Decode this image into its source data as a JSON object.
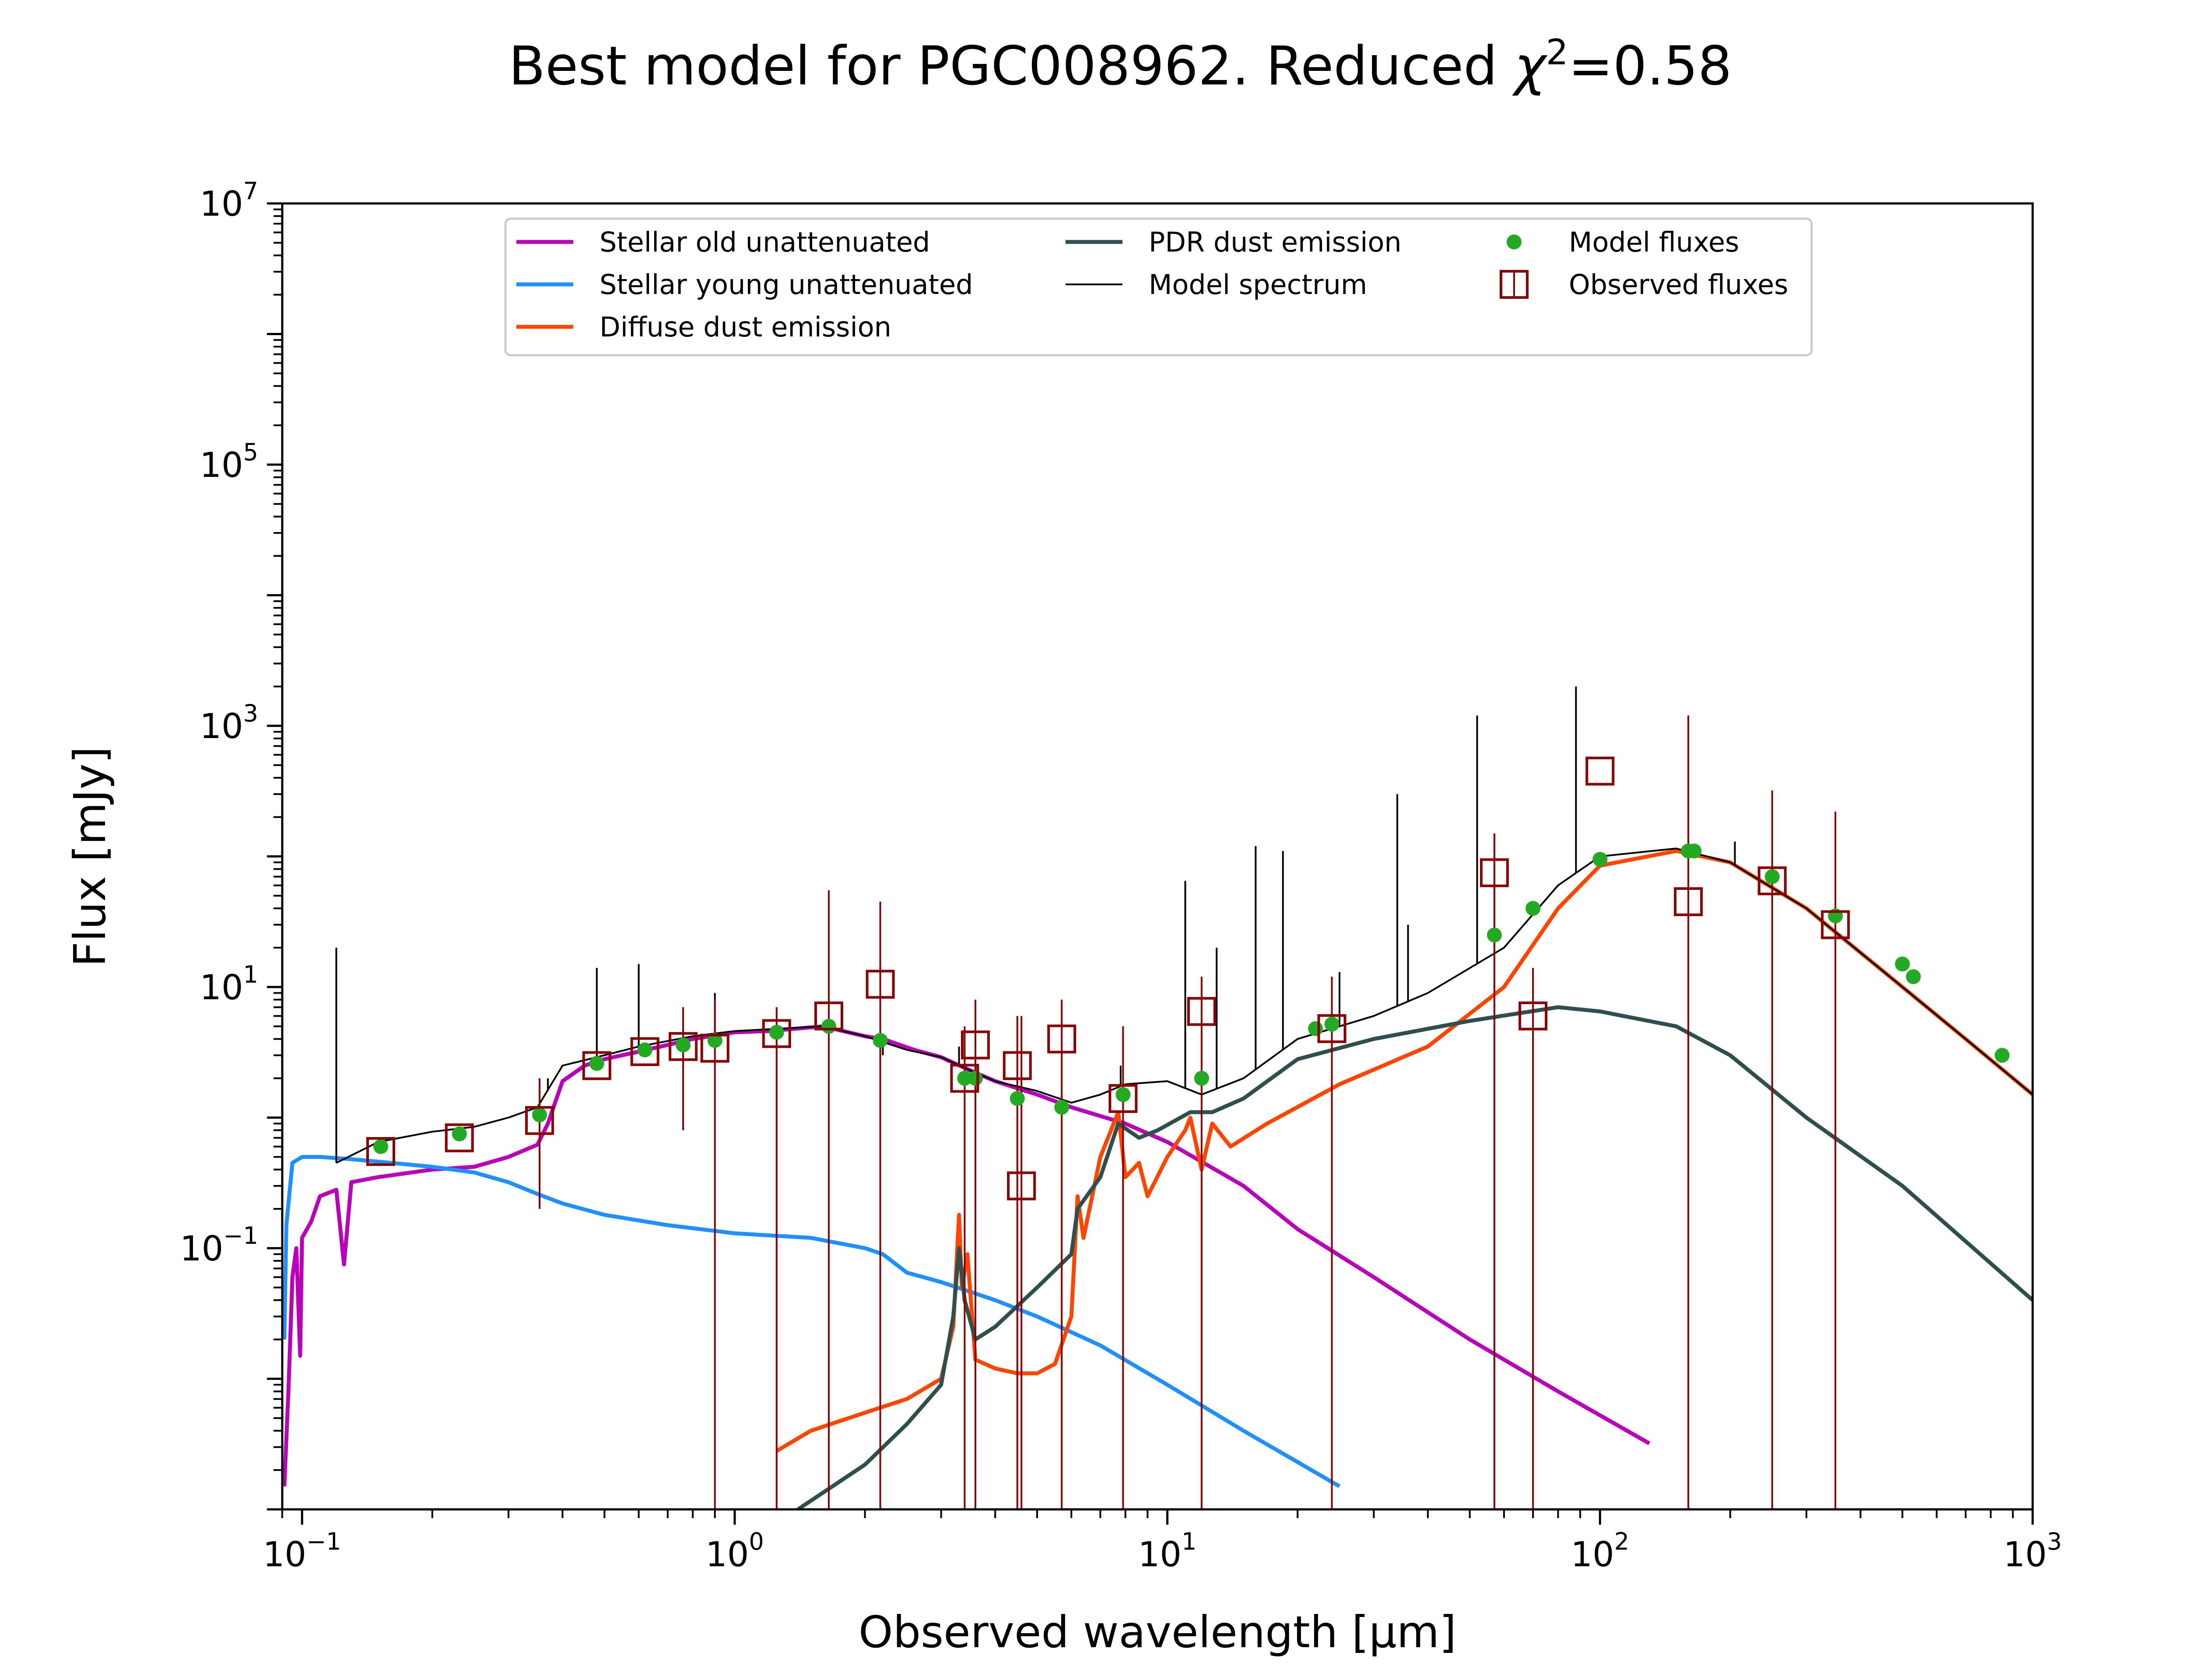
{
  "chart_data": {
    "type": "line",
    "title": "Best model for PGC008962. Reduced χ²=0.58",
    "title_parts": {
      "prefix": "Best model for PGC008962. Reduced ",
      "chi": "χ",
      "sup": "2",
      "suffix": "=0.58"
    },
    "xlabel": "Observed wavelength [μm]",
    "ylabel": "Flux [mJy]",
    "xscale": "log",
    "yscale": "log",
    "xlim": [
      0.09,
      1000
    ],
    "ylim": [
      0.001,
      10000000
    ],
    "x_ticks": [
      {
        "value": 0.1,
        "base": "10",
        "exp": "−1"
      },
      {
        "value": 1,
        "base": "10",
        "exp": "0"
      },
      {
        "value": 10,
        "base": "10",
        "exp": "1"
      },
      {
        "value": 100,
        "base": "10",
        "exp": "2"
      },
      {
        "value": 1000,
        "base": "10",
        "exp": "3"
      }
    ],
    "y_ticks": [
      {
        "value": 0.1,
        "base": "10",
        "exp": "−1"
      },
      {
        "value": 10,
        "base": "10",
        "exp": "1"
      },
      {
        "value": 1000,
        "base": "10",
        "exp": "3"
      },
      {
        "value": 100000,
        "base": "10",
        "exp": "5"
      },
      {
        "value": 10000000,
        "base": "10",
        "exp": "7"
      }
    ],
    "legend": {
      "placement": "top-center",
      "entries": [
        {
          "label": "Stellar old unattenuated",
          "kind": "line",
          "color": "#bb00bb"
        },
        {
          "label": "Stellar young unattenuated",
          "kind": "line",
          "color": "#1e90ff"
        },
        {
          "label": "Diffuse dust emission",
          "kind": "line",
          "color": "#ff4500"
        },
        {
          "label": "PDR dust emission",
          "kind": "line",
          "color": "#2f4f4f"
        },
        {
          "label": "Model spectrum",
          "kind": "thinline",
          "color": "#000000"
        },
        {
          "label": "Model fluxes",
          "kind": "dot",
          "color": "#22aa22"
        },
        {
          "label": "Observed fluxes",
          "kind": "square",
          "color": "#8b0000"
        }
      ]
    },
    "series": [
      {
        "name": "Stellar old unattenuated",
        "color": "#bb00bb",
        "points": [
          [
            0.091,
            0.0015
          ],
          [
            0.093,
            0.008
          ],
          [
            0.095,
            0.06
          ],
          [
            0.097,
            0.1
          ],
          [
            0.099,
            0.015
          ],
          [
            0.1,
            0.12
          ],
          [
            0.105,
            0.16
          ],
          [
            0.11,
            0.25
          ],
          [
            0.12,
            0.28
          ],
          [
            0.125,
            0.075
          ],
          [
            0.13,
            0.32
          ],
          [
            0.15,
            0.35
          ],
          [
            0.2,
            0.4
          ],
          [
            0.25,
            0.42
          ],
          [
            0.3,
            0.5
          ],
          [
            0.35,
            0.62
          ],
          [
            0.37,
            0.9
          ],
          [
            0.4,
            1.9
          ],
          [
            0.45,
            2.5
          ],
          [
            0.5,
            2.8
          ],
          [
            0.6,
            3.2
          ],
          [
            0.7,
            3.6
          ],
          [
            0.8,
            4.0
          ],
          [
            1.0,
            4.5
          ],
          [
            1.2,
            4.6
          ],
          [
            1.6,
            5.0
          ],
          [
            2.0,
            4.2
          ],
          [
            2.2,
            4.0
          ],
          [
            2.6,
            3.3
          ],
          [
            3.0,
            2.9
          ],
          [
            3.5,
            2.3
          ],
          [
            4.0,
            1.9
          ],
          [
            5.0,
            1.5
          ],
          [
            6.0,
            1.2
          ],
          [
            8.0,
            0.9
          ],
          [
            10.0,
            0.65
          ],
          [
            15.0,
            0.3
          ],
          [
            20.0,
            0.14
          ],
          [
            30.0,
            0.06
          ],
          [
            50.0,
            0.02
          ],
          [
            80.0,
            0.008
          ],
          [
            130.0,
            0.0032
          ]
        ]
      },
      {
        "name": "Stellar young unattenuated",
        "color": "#1e90ff",
        "points": [
          [
            0.091,
            0.02
          ],
          [
            0.092,
            0.15
          ],
          [
            0.095,
            0.45
          ],
          [
            0.1,
            0.5
          ],
          [
            0.11,
            0.5
          ],
          [
            0.13,
            0.48
          ],
          [
            0.15,
            0.46
          ],
          [
            0.2,
            0.42
          ],
          [
            0.25,
            0.38
          ],
          [
            0.3,
            0.32
          ],
          [
            0.35,
            0.26
          ],
          [
            0.4,
            0.22
          ],
          [
            0.5,
            0.18
          ],
          [
            0.7,
            0.15
          ],
          [
            1.0,
            0.13
          ],
          [
            1.5,
            0.12
          ],
          [
            2.0,
            0.1
          ],
          [
            2.2,
            0.09
          ],
          [
            2.5,
            0.065
          ],
          [
            3.0,
            0.055
          ],
          [
            4.0,
            0.04
          ],
          [
            5.0,
            0.03
          ],
          [
            7.0,
            0.018
          ],
          [
            10.0,
            0.009
          ],
          [
            15.0,
            0.004
          ],
          [
            25.0,
            0.0015
          ]
        ]
      },
      {
        "name": "Diffuse dust emission",
        "color": "#ff4500",
        "points": [
          [
            1.25,
            0.0028
          ],
          [
            1.5,
            0.004
          ],
          [
            2.0,
            0.0055
          ],
          [
            2.5,
            0.007
          ],
          [
            3.0,
            0.01
          ],
          [
            3.2,
            0.025
          ],
          [
            3.3,
            0.18
          ],
          [
            3.35,
            0.05
          ],
          [
            3.45,
            0.09
          ],
          [
            3.6,
            0.014
          ],
          [
            4.0,
            0.012
          ],
          [
            4.5,
            0.011
          ],
          [
            5.0,
            0.011
          ],
          [
            5.5,
            0.013
          ],
          [
            6.0,
            0.03
          ],
          [
            6.2,
            0.25
          ],
          [
            6.4,
            0.12
          ],
          [
            7.0,
            0.5
          ],
          [
            7.7,
            1.1
          ],
          [
            8.0,
            0.35
          ],
          [
            8.6,
            0.45
          ],
          [
            9.0,
            0.25
          ],
          [
            10.0,
            0.5
          ],
          [
            11.0,
            0.8
          ],
          [
            11.3,
            1.0
          ],
          [
            12.0,
            0.4
          ],
          [
            12.7,
            0.9
          ],
          [
            14.0,
            0.6
          ],
          [
            17.0,
            0.9
          ],
          [
            25.0,
            1.8
          ],
          [
            40.0,
            3.5
          ],
          [
            60.0,
            10.0
          ],
          [
            80.0,
            40.0
          ],
          [
            100.0,
            85.0
          ],
          [
            150.0,
            110.0
          ],
          [
            200.0,
            90.0
          ],
          [
            300.0,
            40.0
          ],
          [
            500.0,
            10.0
          ],
          [
            700.0,
            4.0
          ],
          [
            1000.0,
            1.5
          ]
        ]
      },
      {
        "name": "PDR dust emission",
        "color": "#2f4f4f",
        "points": [
          [
            1.4,
            0.001
          ],
          [
            2.0,
            0.0022
          ],
          [
            2.5,
            0.0045
          ],
          [
            3.0,
            0.009
          ],
          [
            3.2,
            0.03
          ],
          [
            3.3,
            0.1
          ],
          [
            3.4,
            0.04
          ],
          [
            3.6,
            0.02
          ],
          [
            4.0,
            0.025
          ],
          [
            5.0,
            0.05
          ],
          [
            6.0,
            0.09
          ],
          [
            6.2,
            0.2
          ],
          [
            7.0,
            0.35
          ],
          [
            7.7,
            0.9
          ],
          [
            8.6,
            0.7
          ],
          [
            9.5,
            0.8
          ],
          [
            11.3,
            1.1
          ],
          [
            12.7,
            1.1
          ],
          [
            15.0,
            1.4
          ],
          [
            20.0,
            2.8
          ],
          [
            30.0,
            4.0
          ],
          [
            50.0,
            5.5
          ],
          [
            80.0,
            7.0
          ],
          [
            100.0,
            6.5
          ],
          [
            150.0,
            5.0
          ],
          [
            200.0,
            3.0
          ],
          [
            300.0,
            1.0
          ],
          [
            500.0,
            0.3
          ],
          [
            1000.0,
            0.04
          ]
        ]
      },
      {
        "name": "Model spectrum",
        "color": "#000000",
        "points": [
          [
            0.12,
            0.45
          ],
          [
            0.15,
            0.65
          ],
          [
            0.2,
            0.78
          ],
          [
            0.25,
            0.85
          ],
          [
            0.3,
            1.0
          ],
          [
            0.35,
            1.2
          ],
          [
            0.4,
            2.5
          ],
          [
            0.5,
            3.0
          ],
          [
            0.6,
            3.5
          ],
          [
            0.8,
            4.2
          ],
          [
            1.0,
            4.6
          ],
          [
            1.6,
            5.0
          ],
          [
            2.0,
            4.2
          ],
          [
            2.5,
            3.3
          ],
          [
            3.0,
            2.9
          ],
          [
            3.5,
            2.3
          ],
          [
            4.0,
            1.9
          ],
          [
            5.0,
            1.6
          ],
          [
            6.0,
            1.3
          ],
          [
            7.0,
            1.5
          ],
          [
            8.0,
            1.8
          ],
          [
            10.0,
            1.9
          ],
          [
            12.0,
            1.5
          ],
          [
            15.0,
            2.0
          ],
          [
            20.0,
            4.0
          ],
          [
            30.0,
            6.0
          ],
          [
            40.0,
            9.0
          ],
          [
            60.0,
            20.0
          ],
          [
            80.0,
            60.0
          ],
          [
            100.0,
            100.0
          ],
          [
            150.0,
            115.0
          ],
          [
            200.0,
            90.0
          ],
          [
            300.0,
            40.0
          ],
          [
            500.0,
            10.0
          ],
          [
            700.0,
            4.0
          ],
          [
            1000.0,
            1.5
          ]
        ],
        "spikes": [
          [
            0.12,
            20
          ],
          [
            0.37,
            2.0
          ],
          [
            0.48,
            14
          ],
          [
            0.6,
            15
          ],
          [
            0.9,
            9
          ],
          [
            2.2,
            3
          ],
          [
            3.3,
            3.5
          ],
          [
            7.8,
            2.5
          ],
          [
            11.0,
            65
          ],
          [
            13.0,
            20
          ],
          [
            16.0,
            120
          ],
          [
            18.5,
            110
          ],
          [
            25.0,
            13
          ],
          [
            34.0,
            300
          ],
          [
            36.0,
            30
          ],
          [
            52.0,
            1200
          ],
          [
            57.0,
            110
          ],
          [
            88.0,
            2000
          ],
          [
            205.0,
            130
          ]
        ]
      },
      {
        "name": "Model fluxes",
        "color": "#22aa22",
        "kind": "points",
        "points": [
          [
            0.152,
            0.6
          ],
          [
            0.231,
            0.75
          ],
          [
            0.354,
            1.05
          ],
          [
            0.48,
            2.6
          ],
          [
            0.62,
            3.3
          ],
          [
            0.76,
            3.6
          ],
          [
            0.9,
            3.9
          ],
          [
            1.25,
            4.5
          ],
          [
            1.65,
            5.0
          ],
          [
            2.17,
            3.9
          ],
          [
            3.4,
            2.0
          ],
          [
            3.6,
            2.0
          ],
          [
            4.5,
            1.4
          ],
          [
            5.7,
            1.2
          ],
          [
            7.9,
            1.5
          ],
          [
            12.0,
            2.0
          ],
          [
            22.0,
            4.8
          ],
          [
            24.0,
            5.2
          ],
          [
            57.0,
            25.0
          ],
          [
            70.0,
            40.0
          ],
          [
            100.0,
            95.0
          ],
          [
            160.0,
            110.0
          ],
          [
            165.0,
            110.0
          ],
          [
            250.0,
            70.0
          ],
          [
            350.0,
            35.0
          ],
          [
            500.0,
            15.0
          ],
          [
            530.0,
            12.0
          ],
          [
            850.0,
            3.0
          ]
        ]
      },
      {
        "name": "Observed fluxes",
        "color": "#8b0000",
        "kind": "squares",
        "points": [
          [
            0.152,
            0.55
          ],
          [
            0.231,
            0.7
          ],
          [
            0.354,
            0.95
          ],
          [
            0.48,
            2.5
          ],
          [
            0.62,
            3.2
          ],
          [
            0.76,
            3.5
          ],
          [
            0.9,
            3.4
          ],
          [
            1.25,
            4.4
          ],
          [
            1.65,
            6.0
          ],
          [
            2.17,
            10.5
          ],
          [
            3.4,
            2.0
          ],
          [
            3.6,
            3.6
          ],
          [
            4.5,
            2.5
          ],
          [
            4.6,
            0.3
          ],
          [
            5.7,
            4.0
          ],
          [
            7.9,
            1.4
          ],
          [
            12.0,
            6.5
          ],
          [
            24.0,
            4.8
          ],
          [
            57.0,
            75.0
          ],
          [
            70.0,
            6.0
          ],
          [
            100.0,
            450.0
          ],
          [
            160.0,
            45.0
          ],
          [
            250.0,
            65.0
          ],
          [
            350.0,
            30.0
          ]
        ],
        "errorbars": [
          [
            0.354,
            0.2,
            2.0
          ],
          [
            0.76,
            0.8,
            7.0
          ],
          [
            0.9,
            0.001,
            8.0
          ],
          [
            1.25,
            0.001,
            7.0
          ],
          [
            1.65,
            0.001,
            55.0
          ],
          [
            2.17,
            0.001,
            45.0
          ],
          [
            3.4,
            0.001,
            5.0
          ],
          [
            3.6,
            0.001,
            8.0
          ],
          [
            4.5,
            0.001,
            6.0
          ],
          [
            4.6,
            0.001,
            6.0
          ],
          [
            5.7,
            0.001,
            8.0
          ],
          [
            7.9,
            0.001,
            5.0
          ],
          [
            12.0,
            0.001,
            12.0
          ],
          [
            24.0,
            0.001,
            12.0
          ],
          [
            57.0,
            0.001,
            150.0
          ],
          [
            70.0,
            0.001,
            14.0
          ],
          [
            160.0,
            0.001,
            1200.0
          ],
          [
            250.0,
            0.001,
            320.0
          ],
          [
            350.0,
            0.001,
            220.0
          ]
        ]
      }
    ]
  }
}
